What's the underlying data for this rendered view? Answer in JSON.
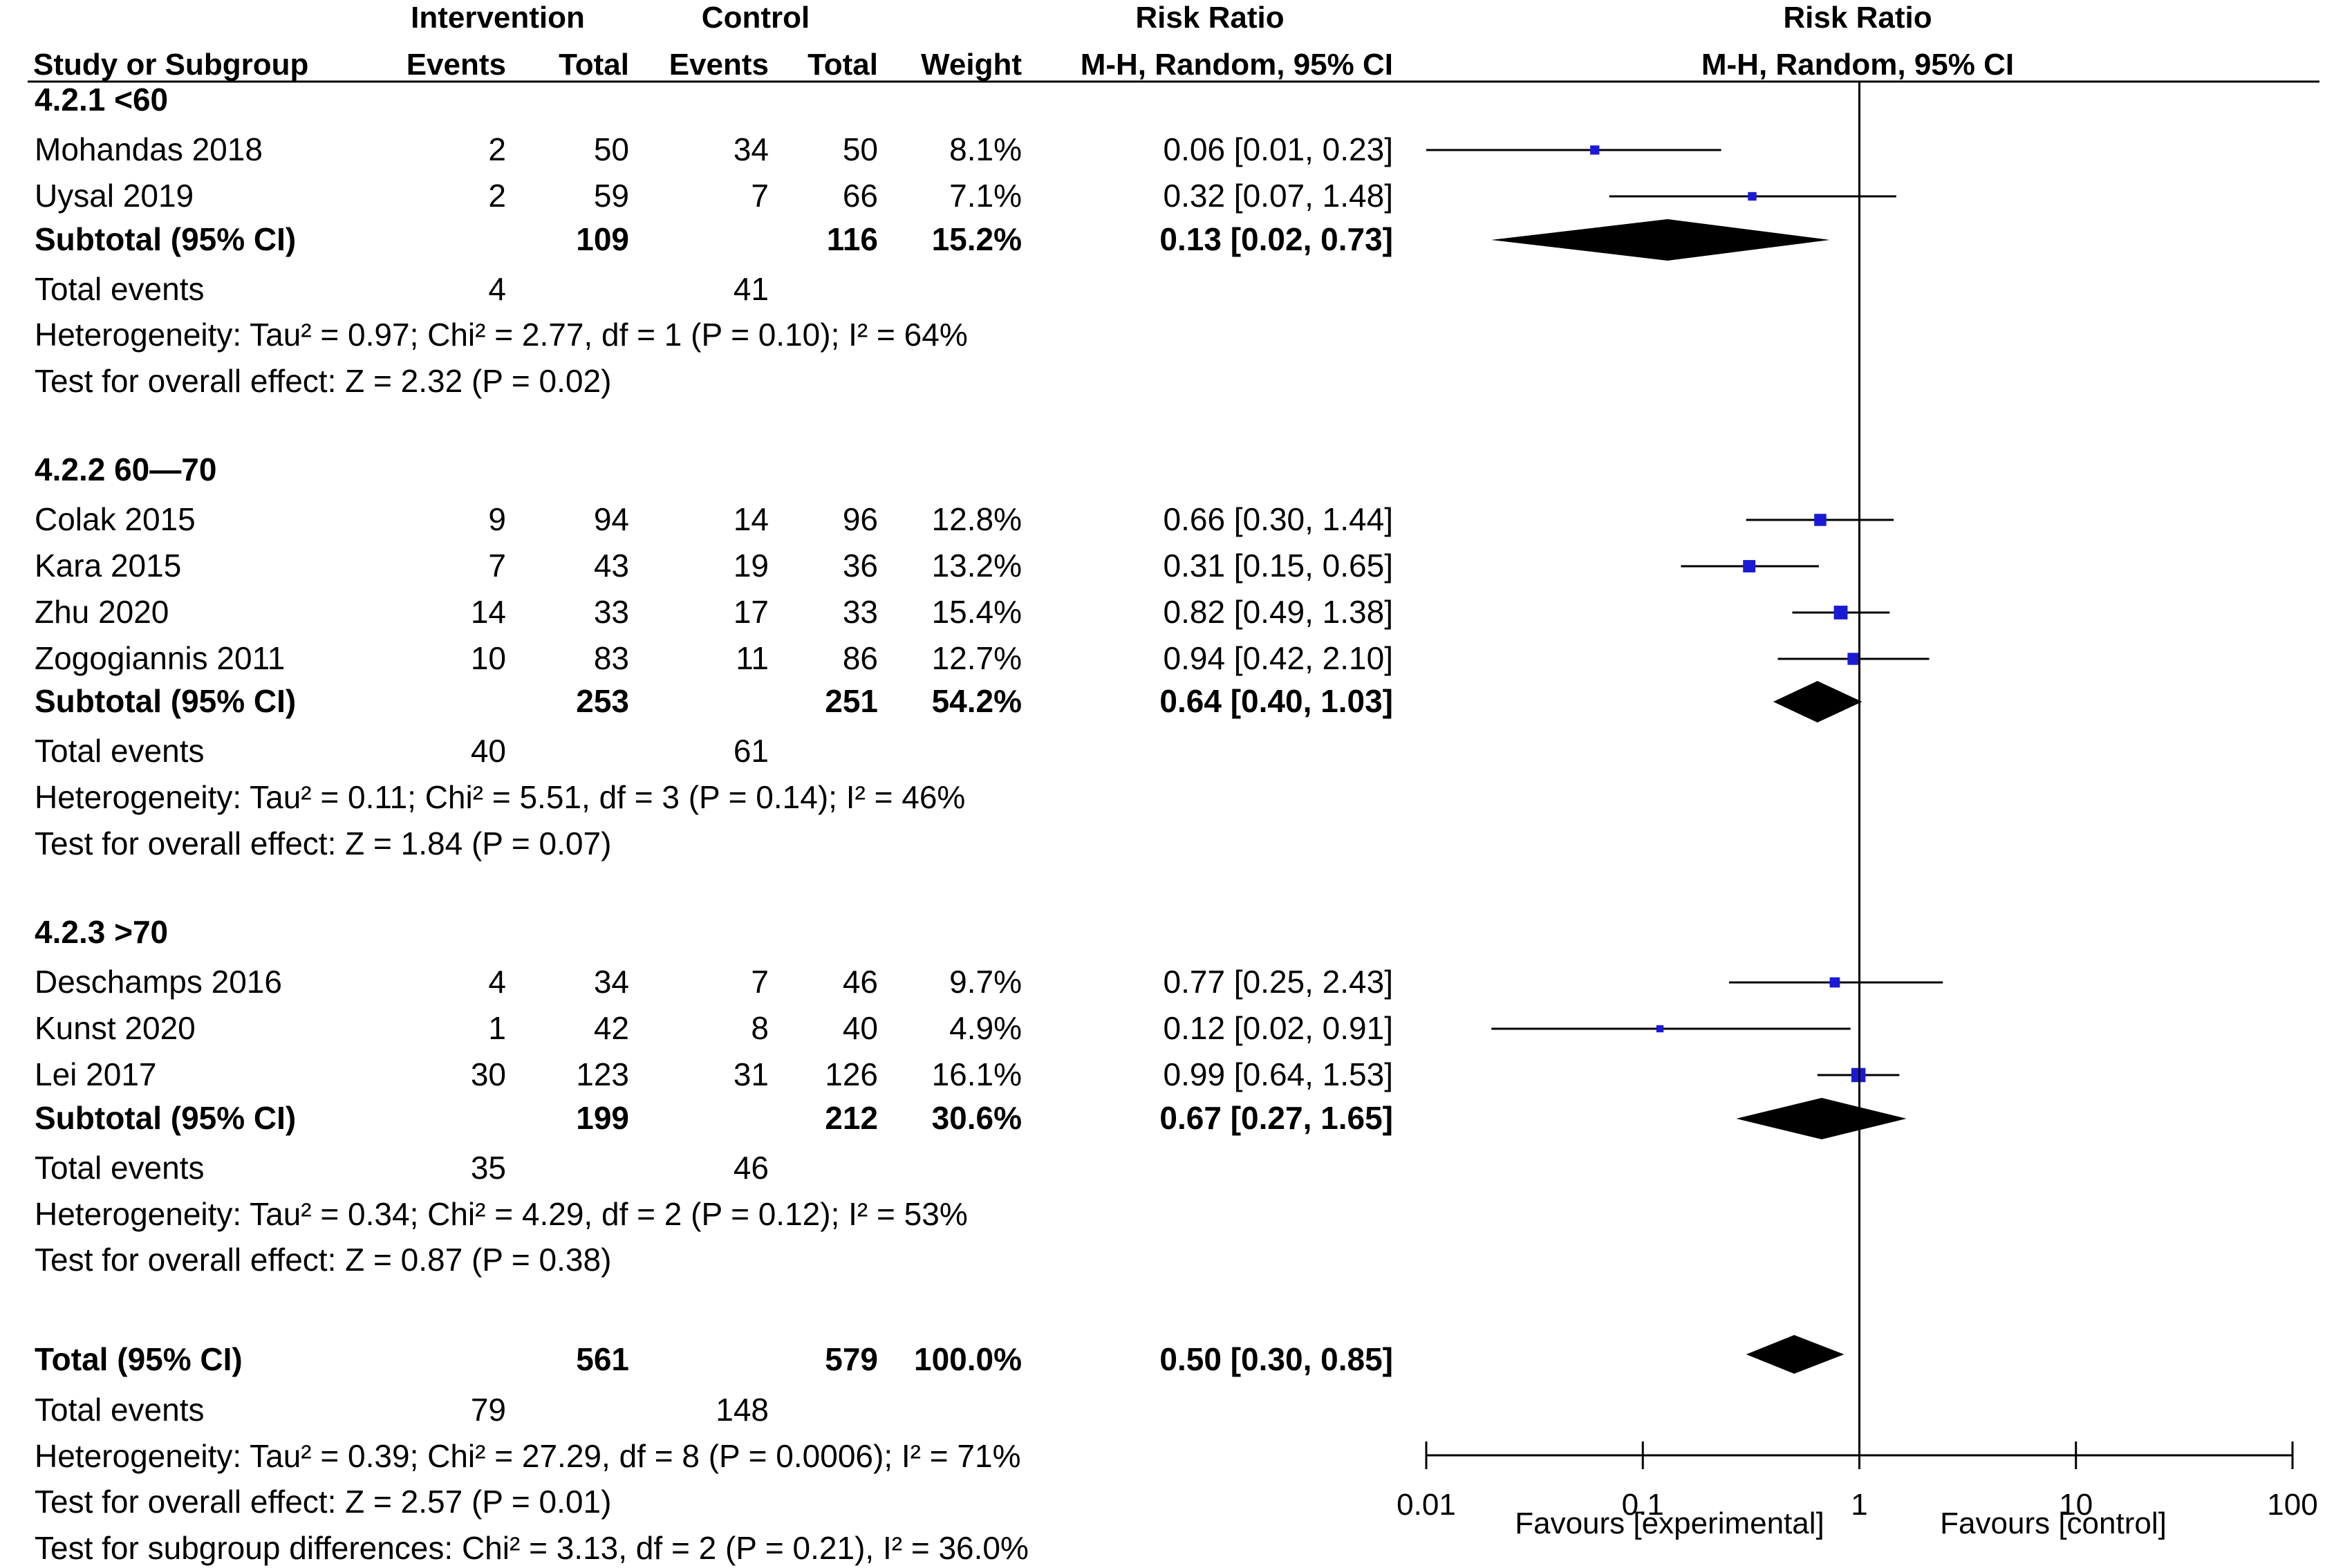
{
  "colors": {
    "study_marker": "#1a1ad6",
    "diamond": "#000000",
    "line": "#000000",
    "header_text": "#333333"
  },
  "headers": {
    "intervention": "Intervention",
    "control": "Control",
    "risk_ratio_left": "Risk Ratio",
    "risk_ratio_right": "Risk Ratio",
    "study": "Study or Subgroup",
    "events_i": "Events",
    "total_i": "Total",
    "events_c": "Events",
    "total_c": "Total",
    "weight": "Weight",
    "method_left": "M-H, Random, 95% CI",
    "method_right": "M-H, Random, 95% CI"
  },
  "groups": [
    {
      "title": "4.2.1 <60",
      "studies": [
        {
          "name": "Mohandas 2018",
          "ei": "2",
          "ti": "50",
          "ec": "34",
          "tc": "50",
          "weight": "8.1%",
          "ci": "0.06 [0.01, 0.23]",
          "rr": 0.06,
          "lo": 0.01,
          "hi": 0.23
        },
        {
          "name": "Uysal 2019",
          "ei": "2",
          "ti": "59",
          "ec": "7",
          "tc": "66",
          "weight": "7.1%",
          "ci": "0.32 [0.07, 1.48]",
          "rr": 0.32,
          "lo": 0.07,
          "hi": 1.48
        }
      ],
      "subtotal": {
        "label": "Subtotal (95% CI)",
        "ti": "109",
        "tc": "116",
        "weight": "15.2%",
        "ci": "0.13 [0.02, 0.73]",
        "rr": 0.13,
        "lo": 0.02,
        "hi": 0.73
      },
      "events": {
        "label": "Total events",
        "ei": "4",
        "ec": "41"
      },
      "heterogeneity": "Heterogeneity: Tau² = 0.97; Chi² = 2.77, df = 1 (P = 0.10); I² = 64%",
      "overall": "Test for overall effect: Z = 2.32 (P = 0.02)"
    },
    {
      "title": "4.2.2 60—70",
      "studies": [
        {
          "name": "Colak 2015",
          "ei": "9",
          "ti": "94",
          "ec": "14",
          "tc": "96",
          "weight": "12.8%",
          "ci": "0.66 [0.30, 1.44]",
          "rr": 0.66,
          "lo": 0.3,
          "hi": 1.44
        },
        {
          "name": "Kara 2015",
          "ei": "7",
          "ti": "43",
          "ec": "19",
          "tc": "36",
          "weight": "13.2%",
          "ci": "0.31 [0.15, 0.65]",
          "rr": 0.31,
          "lo": 0.15,
          "hi": 0.65
        },
        {
          "name": "Zhu 2020",
          "ei": "14",
          "ti": "33",
          "ec": "17",
          "tc": "33",
          "weight": "15.4%",
          "ci": "0.82 [0.49, 1.38]",
          "rr": 0.82,
          "lo": 0.49,
          "hi": 1.38
        },
        {
          "name": "Zogogiannis 2011",
          "ei": "10",
          "ti": "83",
          "ec": "11",
          "tc": "86",
          "weight": "12.7%",
          "ci": "0.94 [0.42, 2.10]",
          "rr": 0.94,
          "lo": 0.42,
          "hi": 2.1
        }
      ],
      "subtotal": {
        "label": "Subtotal (95% CI)",
        "ti": "253",
        "tc": "251",
        "weight": "54.2%",
        "ci": "0.64 [0.40, 1.03]",
        "rr": 0.64,
        "lo": 0.4,
        "hi": 1.03
      },
      "events": {
        "label": "Total events",
        "ei": "40",
        "ec": "61"
      },
      "heterogeneity": "Heterogeneity: Tau² = 0.11; Chi² = 5.51, df = 3 (P = 0.14); I² = 46%",
      "overall": "Test for overall effect: Z = 1.84 (P = 0.07)"
    },
    {
      "title": "4.2.3 >70",
      "studies": [
        {
          "name": "Deschamps 2016",
          "ei": "4",
          "ti": "34",
          "ec": "7",
          "tc": "46",
          "weight": "9.7%",
          "ci": "0.77 [0.25, 2.43]",
          "rr": 0.77,
          "lo": 0.25,
          "hi": 2.43
        },
        {
          "name": "Kunst 2020",
          "ei": "1",
          "ti": "42",
          "ec": "8",
          "tc": "40",
          "weight": "4.9%",
          "ci": "0.12 [0.02, 0.91]",
          "rr": 0.12,
          "lo": 0.02,
          "hi": 0.91
        },
        {
          "name": "Lei 2017",
          "ei": "30",
          "ti": "123",
          "ec": "31",
          "tc": "126",
          "weight": "16.1%",
          "ci": "0.99 [0.64, 1.53]",
          "rr": 0.99,
          "lo": 0.64,
          "hi": 1.53
        }
      ],
      "subtotal": {
        "label": "Subtotal (95% CI)",
        "ti": "199",
        "tc": "212",
        "weight": "30.6%",
        "ci": "0.67 [0.27, 1.65]",
        "rr": 0.67,
        "lo": 0.27,
        "hi": 1.65
      },
      "events": {
        "label": "Total events",
        "ei": "35",
        "ec": "46"
      },
      "heterogeneity": "Heterogeneity: Tau² = 0.34; Chi² = 4.29, df = 2 (P = 0.12); I² = 53%",
      "overall": "Test for overall effect: Z = 0.87 (P = 0.38)"
    }
  ],
  "total": {
    "label": "Total (95% CI)",
    "ti": "561",
    "tc": "579",
    "weight": "100.0%",
    "ci": "0.50 [0.30, 0.85]",
    "rr": 0.5,
    "lo": 0.3,
    "hi": 0.85,
    "events": {
      "label": "Total events",
      "ei": "79",
      "ec": "148"
    },
    "heterogeneity": "Heterogeneity: Tau² = 0.39; Chi² = 27.29, df = 8 (P = 0.0006); I² = 71%",
    "overall": "Test for overall effect: Z = 2.57 (P = 0.01)",
    "subgroup": "Test for subgroup differences: Chi² = 3.13, df = 2 (P = 0.21), I² = 36.0%"
  },
  "chart_data": {
    "type": "forest",
    "scale": "log",
    "xlim": [
      0.01,
      100
    ],
    "ticks": [
      {
        "value": 0.01,
        "label": "0.01"
      },
      {
        "value": 0.1,
        "label": "0.1"
      },
      {
        "value": 1,
        "label": "1"
      },
      {
        "value": 10,
        "label": "10"
      },
      {
        "value": 100,
        "label": "100"
      }
    ],
    "favours_left": "Favours [experimental]",
    "favours_right": "Favours [control]"
  }
}
